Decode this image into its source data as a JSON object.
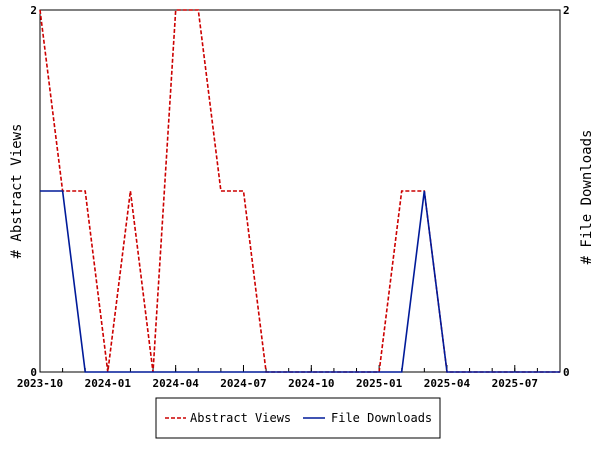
{
  "chart_data": {
    "type": "line",
    "x": [
      "2023-10",
      "2023-11",
      "2023-12",
      "2024-01",
      "2024-02",
      "2024-03",
      "2024-04",
      "2024-05",
      "2024-06",
      "2024-07",
      "2024-08",
      "2024-09",
      "2024-10",
      "2024-11",
      "2024-12",
      "2025-01",
      "2025-02",
      "2025-03",
      "2025-04",
      "2025-05",
      "2025-06",
      "2025-07",
      "2025-08",
      "2025-09"
    ],
    "series": [
      {
        "name": "Abstract Views",
        "axis": "left",
        "color": "#cc0000",
        "dash": true,
        "values": [
          2,
          1,
          1,
          0,
          1,
          0,
          2,
          2,
          1,
          1,
          0,
          0,
          0,
          0,
          0,
          0,
          1,
          1,
          0,
          0,
          0,
          0,
          0,
          0
        ]
      },
      {
        "name": "File Downloads",
        "axis": "right",
        "color": "#001a99",
        "dash": false,
        "values": [
          1,
          1,
          0,
          0,
          0,
          0,
          0,
          0,
          0,
          0,
          0,
          0,
          0,
          0,
          0,
          0,
          0,
          1,
          0,
          0,
          0,
          0,
          0,
          0
        ]
      }
    ],
    "xticks": [
      "2023-10",
      "2024-01",
      "2024-04",
      "2024-07",
      "2024-10",
      "2025-01",
      "2025-04",
      "2025-07"
    ],
    "ylabel_left": "# Abstract Views",
    "ylabel_right": "# File Downloads",
    "ylim_left": [
      0,
      2
    ],
    "ylim_right": [
      0,
      2
    ],
    "yticks_left": [
      "0",
      "2"
    ],
    "yticks_right": [
      "0",
      "2"
    ],
    "grid": false,
    "legend": "bottom-center"
  }
}
